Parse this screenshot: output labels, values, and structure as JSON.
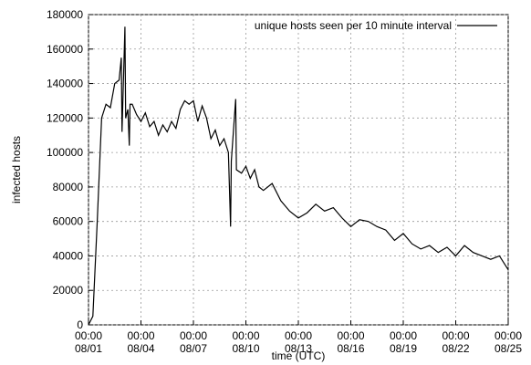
{
  "chart_data": {
    "type": "line",
    "x_label": "time (UTC)",
    "y_label": "infected hosts",
    "legend_position": "top-right",
    "grid": true,
    "xlim": [
      "08/01 00:00",
      "08/25 00:00"
    ],
    "xticks": [
      {
        "value": "08/01 00:00",
        "label": "00:00\n08/01"
      },
      {
        "value": "08/04 00:00",
        "label": "00:00\n08/04"
      },
      {
        "value": "08/07 00:00",
        "label": "00:00\n08/07"
      },
      {
        "value": "08/10 00:00",
        "label": "00:00\n08/10"
      },
      {
        "value": "08/13 00:00",
        "label": "00:00\n08/13"
      },
      {
        "value": "08/16 00:00",
        "label": "00:00\n08/16"
      },
      {
        "value": "08/19 00:00",
        "label": "00:00\n08/19"
      },
      {
        "value": "08/22 00:00",
        "label": "00:00\n08/22"
      },
      {
        "value": "08/25 00:00",
        "label": "00:00\n08/25"
      }
    ],
    "ylim": [
      0,
      180000
    ],
    "yticks": [
      0,
      20000,
      40000,
      60000,
      80000,
      100000,
      120000,
      140000,
      160000,
      180000
    ],
    "x": [
      "08/01 00:00",
      "08/01 06:00",
      "08/01 12:00",
      "08/01 18:00",
      "08/02 00:00",
      "08/02 06:00",
      "08/02 12:00",
      "08/02 18:00",
      "08/02 21:00",
      "08/02 22:00",
      "08/03 02:00",
      "08/03 03:00",
      "08/03 06:00",
      "08/03 08:00",
      "08/03 09:00",
      "08/03 12:00",
      "08/03 18:00",
      "08/04 00:00",
      "08/04 06:00",
      "08/04 12:00",
      "08/04 18:00",
      "08/05 00:00",
      "08/05 06:00",
      "08/05 12:00",
      "08/05 18:00",
      "08/06 00:00",
      "08/06 06:00",
      "08/06 12:00",
      "08/06 18:00",
      "08/07 00:00",
      "08/07 06:00",
      "08/07 12:00",
      "08/07 18:00",
      "08/08 00:00",
      "08/08 06:00",
      "08/08 12:00",
      "08/08 18:00",
      "08/09 00:00",
      "08/09 03:00",
      "08/09 04:00",
      "08/09 10:00",
      "08/09 11:00",
      "08/09 18:00",
      "08/10 00:00",
      "08/10 06:00",
      "08/10 12:00",
      "08/10 18:00",
      "08/11 00:00",
      "08/11 12:00",
      "08/12 00:00",
      "08/12 12:00",
      "08/13 00:00",
      "08/13 12:00",
      "08/14 00:00",
      "08/14 12:00",
      "08/15 00:00",
      "08/15 12:00",
      "08/16 00:00",
      "08/16 12:00",
      "08/17 00:00",
      "08/17 12:00",
      "08/18 00:00",
      "08/18 12:00",
      "08/19 00:00",
      "08/19 12:00",
      "08/20 00:00",
      "08/20 12:00",
      "08/21 00:00",
      "08/21 12:00",
      "08/22 00:00",
      "08/22 12:00",
      "08/23 00:00",
      "08/23 12:00",
      "08/24 00:00",
      "08/24 12:00",
      "08/25 00:00"
    ],
    "series": [
      {
        "name": "unique hosts seen per 10 minute interval",
        "color": "#000000",
        "values": [
          0,
          5000,
          60000,
          120000,
          128000,
          126000,
          140000,
          142000,
          155000,
          112000,
          173000,
          120000,
          125000,
          104000,
          128000,
          128000,
          122000,
          118000,
          123000,
          115000,
          118000,
          110000,
          116000,
          112000,
          118000,
          114000,
          125000,
          130000,
          128000,
          130000,
          118000,
          127000,
          120000,
          108000,
          113000,
          104000,
          108000,
          100000,
          57000,
          95000,
          131000,
          90000,
          88000,
          92000,
          85000,
          90000,
          80000,
          78000,
          82000,
          72000,
          66000,
          62000,
          65000,
          70000,
          66000,
          68000,
          62000,
          57000,
          61000,
          60000,
          57000,
          55000,
          49000,
          53000,
          47000,
          44000,
          46000,
          42000,
          45000,
          40000,
          46000,
          42000,
          40000,
          38000,
          40000,
          32000
        ]
      }
    ]
  }
}
